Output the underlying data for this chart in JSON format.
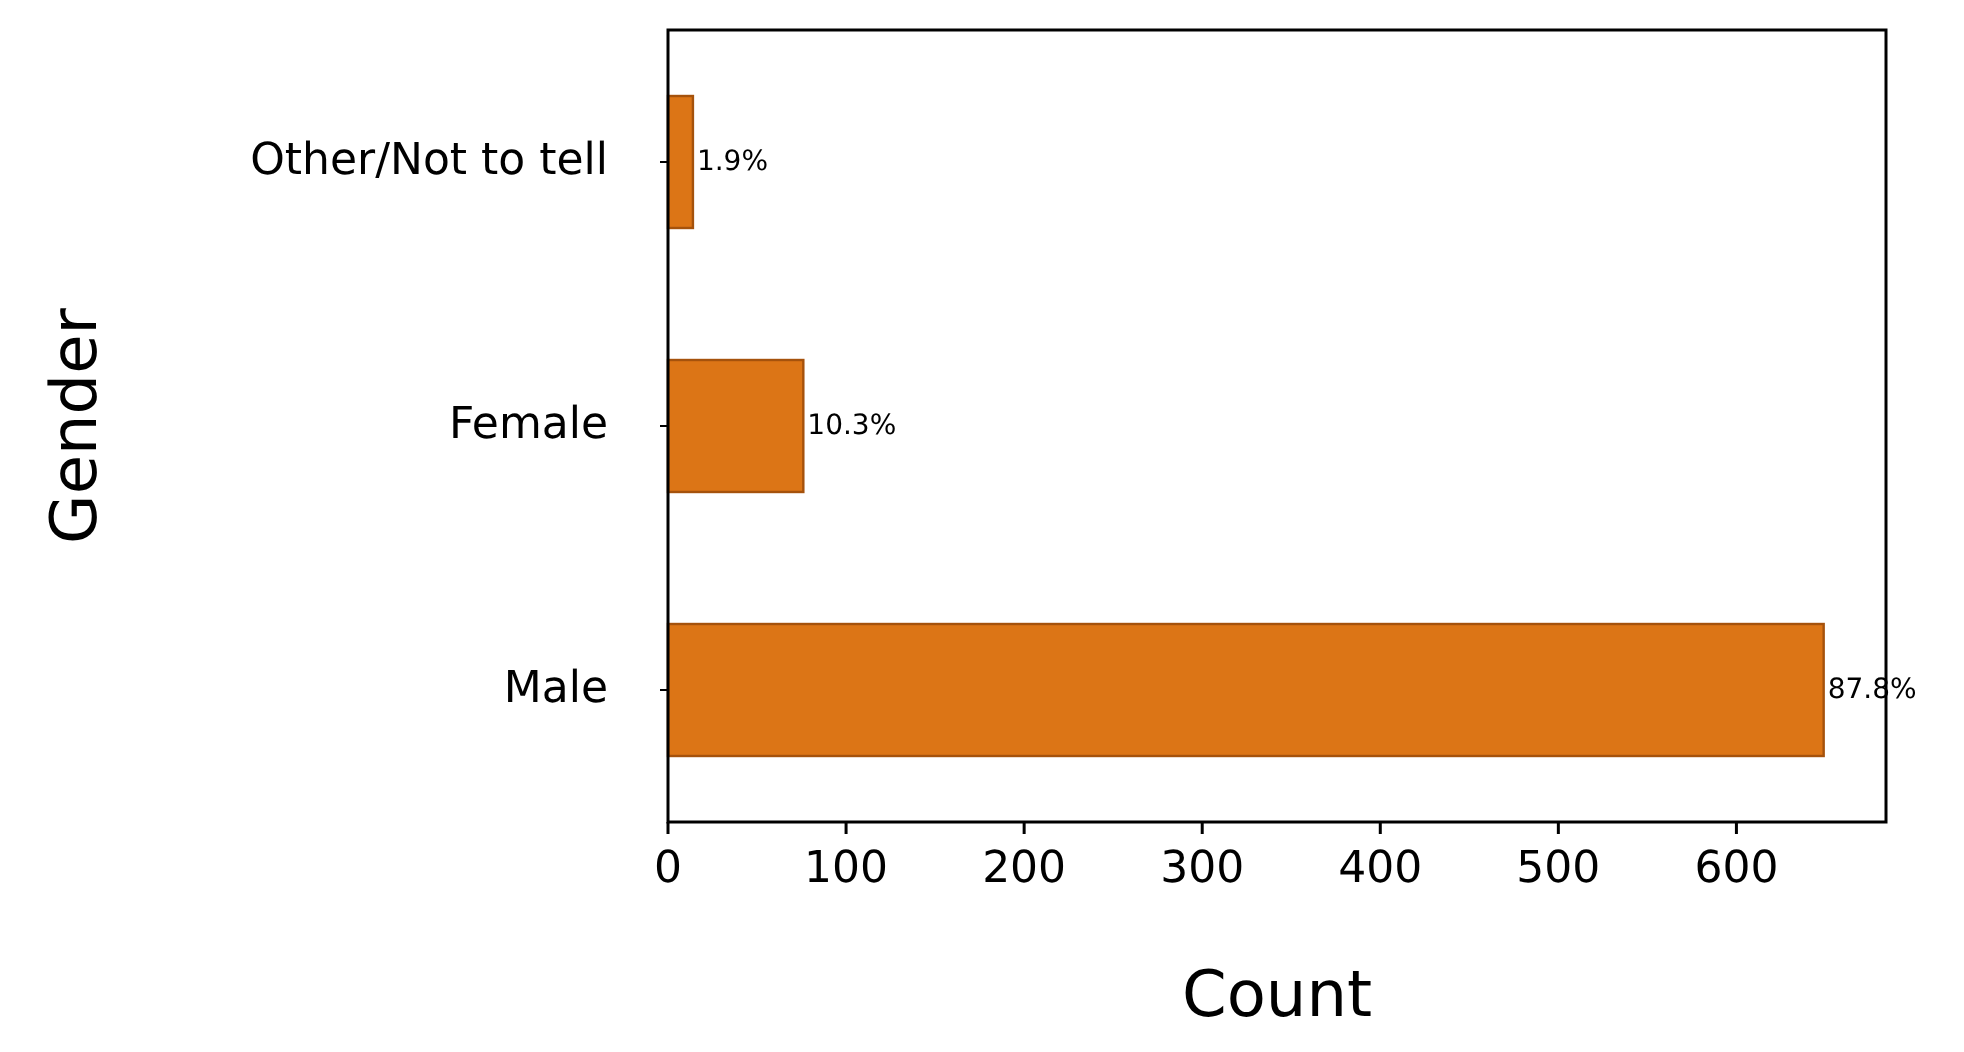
{
  "chart_data": {
    "type": "bar",
    "orientation": "horizontal",
    "xlabel": "Count",
    "ylabel": "Gender",
    "categories": [
      "Other/Not to tell",
      "Female",
      "Male"
    ],
    "values": [
      14,
      76,
      649
    ],
    "annotations": [
      {
        "text": "1.9%",
        "x": 14,
        "y": "Other/Not to tell"
      },
      {
        "text": "10.3%",
        "x": 76,
        "y": "Female"
      },
      {
        "text": "87.8%",
        "x": 649,
        "y": "Male"
      }
    ],
    "color": "#dc7516",
    "xlim": [
      0,
      684
    ],
    "xticks": [
      0,
      100,
      200,
      300,
      400,
      500,
      600
    ],
    "grid": false
  }
}
